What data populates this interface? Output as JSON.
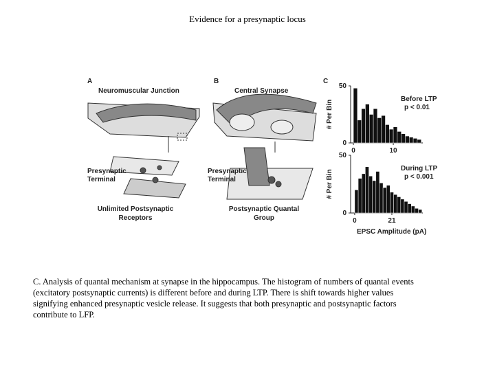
{
  "title": "Evidence for a presynaptic locus",
  "figure": {
    "panel_a": {
      "letter": "A",
      "heading": "Neuromuscular Junction",
      "terminal": [
        "Presynaptic",
        "Terminal"
      ],
      "receptors": [
        "Unlimited Postsynaptic",
        "Receptors"
      ]
    },
    "panel_b": {
      "letter": "B",
      "heading": "Central Synapse",
      "terminal": [
        "Presynaptic",
        "Terminal"
      ],
      "group": [
        "Postsynaptic Quantal",
        "Group"
      ]
    },
    "panel_c": {
      "letter": "C",
      "x_label": "EPSC Amplitude (pA)",
      "histograms": [
        {
          "y_label": "# Per Bin",
          "condition": "Before LTP",
          "p_value": "p < 0.01",
          "ylim": [
            0,
            50
          ],
          "yticks": [
            0,
            50
          ],
          "xlim": [
            -0.7,
            17.4
          ],
          "xticks": [
            0,
            10
          ],
          "bins": [
            0,
            1,
            2,
            3,
            4,
            5,
            6,
            7,
            8,
            9,
            10,
            11,
            12,
            13,
            14,
            15,
            16,
            17
          ],
          "counts": [
            48,
            20,
            30,
            34,
            25,
            30,
            22,
            24,
            16,
            12,
            14,
            10,
            8,
            6,
            5,
            4,
            3
          ]
        },
        {
          "y_label": "# Per Bin",
          "condition": "During LTP",
          "p_value": "p < 0.001",
          "ylim": [
            0,
            50
          ],
          "yticks": [
            0,
            50
          ],
          "xlim": [
            -2.3,
            38.5
          ],
          "xticks": [
            0,
            21
          ],
          "bins": [
            0,
            2,
            4,
            6,
            8,
            10,
            12,
            14,
            16,
            18,
            20,
            22,
            24,
            26,
            28,
            30,
            32,
            34,
            36,
            38
          ],
          "counts": [
            20,
            30,
            34,
            40,
            32,
            28,
            36,
            26,
            22,
            24,
            18,
            16,
            14,
            12,
            10,
            8,
            6,
            4,
            3
          ]
        }
      ]
    }
  },
  "caption_lines": [
    "C. Analysis of quantal mechanism at synapse in the hippocampus. The histogram of numbers of quantal events",
    "(excitatory postsynaptic currents) is different before and during LTP. There is shift towards higher values",
    "signifying enhanced presynaptic vesicle release. It suggests that both presynaptic and postsynaptic factors",
    "contribute to LFP."
  ]
}
